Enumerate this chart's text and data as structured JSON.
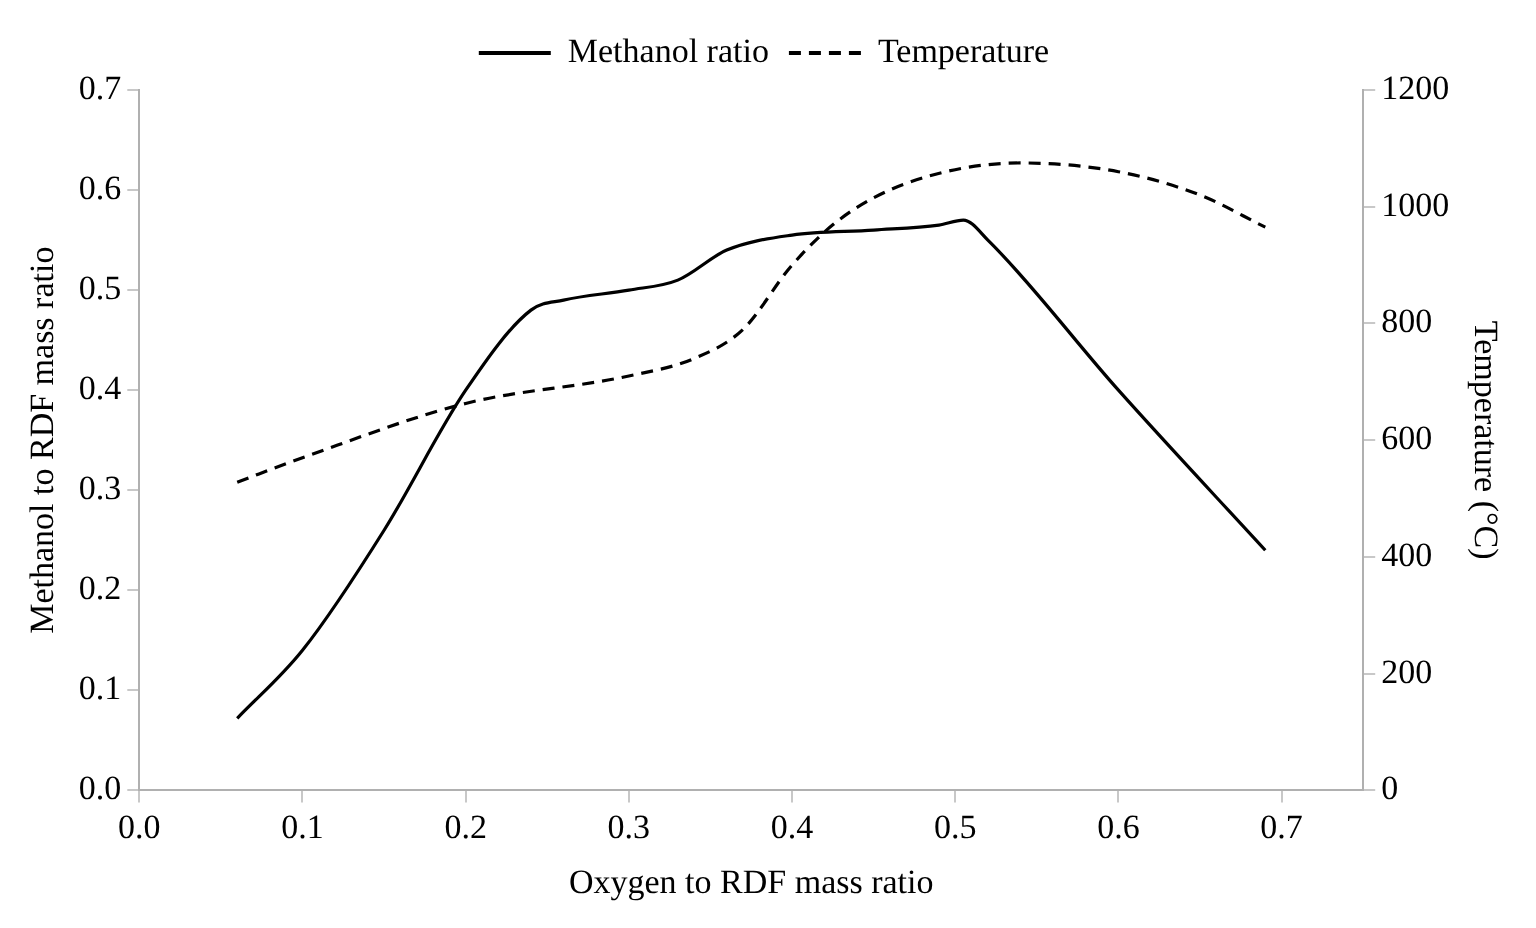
{
  "chart_data": {
    "type": "line",
    "xlabel": "Oxygen to RDF mass ratio",
    "ylabel": "Methanol to RDF mass ratio",
    "y2label": "Temperature (°C)",
    "xlim": [
      0,
      0.75
    ],
    "xticks": [
      {
        "value": 0,
        "label": "0.0"
      },
      {
        "value": 0.1,
        "label": "0.1"
      },
      {
        "value": 0.2,
        "label": "0.2"
      },
      {
        "value": 0.3,
        "label": "0.3"
      },
      {
        "value": 0.4,
        "label": "0.4"
      },
      {
        "value": 0.5,
        "label": "0.5"
      },
      {
        "value": 0.6,
        "label": "0.6"
      },
      {
        "value": 0.7,
        "label": "0.7"
      }
    ],
    "ylim": [
      0,
      0.7
    ],
    "yticks": [
      {
        "value": 0,
        "label": "0.0"
      },
      {
        "value": 0.1,
        "label": "0.1"
      },
      {
        "value": 0.2,
        "label": "0.2"
      },
      {
        "value": 0.3,
        "label": "0.3"
      },
      {
        "value": 0.4,
        "label": "0.4"
      },
      {
        "value": 0.5,
        "label": "0.5"
      },
      {
        "value": 0.6,
        "label": "0.6"
      },
      {
        "value": 0.7,
        "label": "0.7"
      }
    ],
    "y2lim": [
      0,
      1200
    ],
    "y2ticks": [
      0,
      200,
      400,
      600,
      800,
      1000,
      1200
    ],
    "legend": "top",
    "grid": false,
    "marker": "none",
    "series": [
      {
        "name": "Methanol ratio",
        "color": "#000000",
        "line_style": "solid",
        "x": [
          0.06,
          0.1,
          0.15,
          0.2,
          0.24,
          0.26,
          0.3,
          0.33,
          0.36,
          0.4,
          0.45,
          0.49,
          0.505,
          0.52,
          0.6,
          0.69
        ],
        "values": [
          0.072,
          0.14,
          0.26,
          0.4,
          0.48,
          0.49,
          0.5,
          0.51,
          0.54,
          0.555,
          0.56,
          0.565,
          0.57,
          0.55,
          0.4,
          0.24
        ]
      },
      {
        "name": "Temperature",
        "color": "#000000",
        "line_style": "dashed",
        "axis": "y2",
        "x": [
          0.06,
          0.1,
          0.2,
          0.3,
          0.34,
          0.37,
          0.4,
          0.43,
          0.47,
          0.54,
          0.6,
          0.65,
          0.69
        ],
        "values": [
          528,
          570,
          663,
          710,
          740,
          790,
          900,
          980,
          1040,
          1075,
          1060,
          1020,
          965
        ]
      }
    ]
  }
}
